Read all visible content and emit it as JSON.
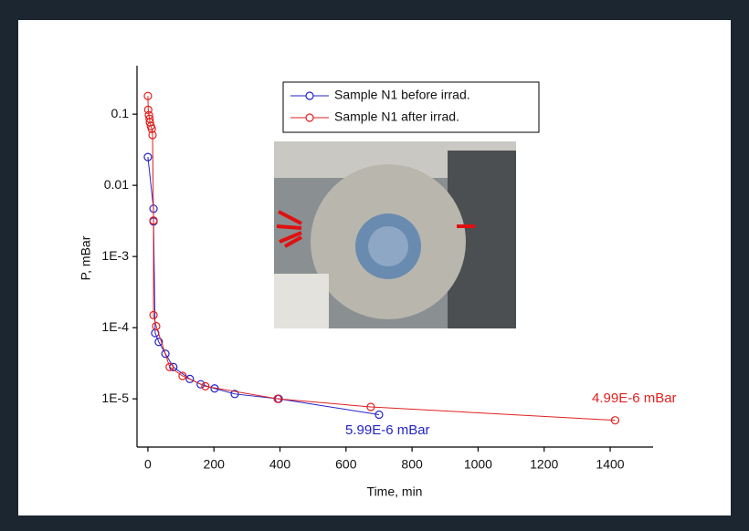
{
  "chart_data": {
    "type": "line",
    "x_label": "Time, min",
    "y_label": "P, mBar",
    "xlim": [
      -33,
      1530
    ],
    "xticks": [
      0,
      200,
      400,
      600,
      800,
      1000,
      1200,
      1400
    ],
    "ylim": [
      2.1e-06,
      0.48
    ],
    "ylog": true,
    "yticks": [
      0.1,
      0.01,
      {
        "value": 0.001,
        "label": "1E-3"
      },
      {
        "value": 0.0001,
        "label": "1E-4"
      },
      {
        "value": 1e-05,
        "label": "1E-5"
      }
    ],
    "legend": "top",
    "series": [
      {
        "name": "Sample N1 before irrad.",
        "color": "#2323c8",
        "x": [
          0,
          17,
          17,
          22,
          33,
          53,
          77,
          127,
          160,
          202,
          263,
          396,
          700
        ],
        "values": [
          0.025,
          0.0047,
          0.0031,
          8.4e-05,
          6.3e-05,
          4.3e-05,
          2.8e-05,
          1.9e-05,
          1.6e-05,
          1.4e-05,
          1.17e-05,
          1e-05,
          5.99e-06
        ]
      },
      {
        "name": "Sample N1 after irrad.",
        "color": "#e02020",
        "x": [
          0,
          1,
          3,
          5,
          6,
          9,
          12,
          14,
          17,
          17,
          25,
          66,
          105,
          174,
          393,
          675,
          1415
        ],
        "values": [
          0.18,
          0.115,
          0.097,
          0.086,
          0.077,
          0.068,
          0.062,
          0.051,
          0.0032,
          0.00015,
          0.000105,
          2.8e-05,
          2.1e-05,
          1.5e-05,
          1e-05,
          7.7e-06,
          4.99e-06
        ]
      }
    ],
    "annotations": [
      {
        "text": "5.99E-6 mBar",
        "color": "#2323c8"
      },
      {
        "text": "4.99E-6 mBar",
        "color": "#e02020"
      }
    ]
  }
}
